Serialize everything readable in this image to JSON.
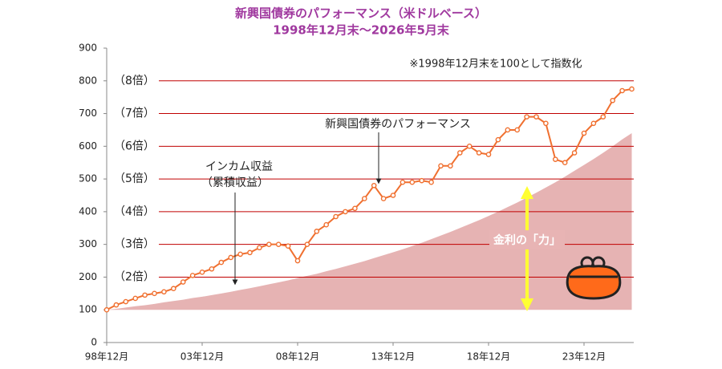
{
  "chart_data": {
    "type": "line",
    "title": "新興国債券のパフォーマンス（米ドルベース）",
    "subtitle": "1998年12月末～2026年5月末",
    "note": "※1998年12月末を100として指数化",
    "categories": [
      "98年12月",
      null,
      null,
      null,
      null,
      null,
      null,
      null,
      null,
      null,
      "03年12月",
      null,
      null,
      null,
      null,
      null,
      null,
      null,
      null,
      null,
      "08年12月",
      null,
      null,
      null,
      null,
      null,
      null,
      null,
      null,
      null,
      "13年12月",
      null,
      null,
      null,
      null,
      null,
      null,
      null,
      null,
      null,
      "18年12月",
      null,
      null,
      null,
      null,
      null,
      null,
      null,
      null,
      null,
      "23年12月",
      null,
      null,
      null,
      null,
      null
    ],
    "series": [
      {
        "name": "新興国債券のパフォーマンス",
        "color": "#f07030",
        "values": [
          100,
          115,
          125,
          135,
          145,
          150,
          155,
          165,
          185,
          205,
          215,
          225,
          245,
          260,
          270,
          275,
          290,
          300,
          300,
          295,
          250,
          300,
          340,
          360,
          385,
          400,
          410,
          440,
          480,
          440,
          450,
          490,
          490,
          495,
          490,
          540,
          540,
          580,
          600,
          580,
          575,
          620,
          650,
          650,
          690,
          690,
          670,
          560,
          550,
          580,
          640,
          670,
          690,
          740,
          770,
          775
        ]
      },
      {
        "name": "インカム収益",
        "color": "#e6b3b3",
        "baseline": 100,
        "values": [
          100,
          103,
          107,
          111,
          114,
          118,
          123,
          127,
          131,
          136,
          140,
          145,
          150,
          155,
          161,
          166,
          172,
          178,
          184,
          190,
          197,
          204,
          210,
          218,
          225,
          233,
          241,
          249,
          258,
          267,
          276,
          285,
          295,
          305,
          316,
          327,
          338,
          350,
          362,
          374,
          387,
          400,
          414,
          428,
          443,
          458,
          474,
          490,
          507,
          525,
          543,
          561,
          580,
          600,
          621,
          640
        ]
      }
    ],
    "area_label": "（累積収益）",
    "power_label": "金利の「力」",
    "ylim": [
      0,
      900
    ],
    "yticks": [
      0,
      100,
      200,
      300,
      400,
      500,
      600,
      700,
      800,
      900
    ],
    "multiples": [
      {
        "value": 200,
        "label": "（2倍）"
      },
      {
        "value": 300,
        "label": "（3倍）"
      },
      {
        "value": 400,
        "label": "（4倍）"
      },
      {
        "value": 500,
        "label": "（5倍）"
      },
      {
        "value": 600,
        "label": "（6倍）"
      },
      {
        "value": 700,
        "label": "（7倍）"
      },
      {
        "value": 800,
        "label": "（8倍）"
      }
    ],
    "multiple_line_color": "#c00000"
  }
}
